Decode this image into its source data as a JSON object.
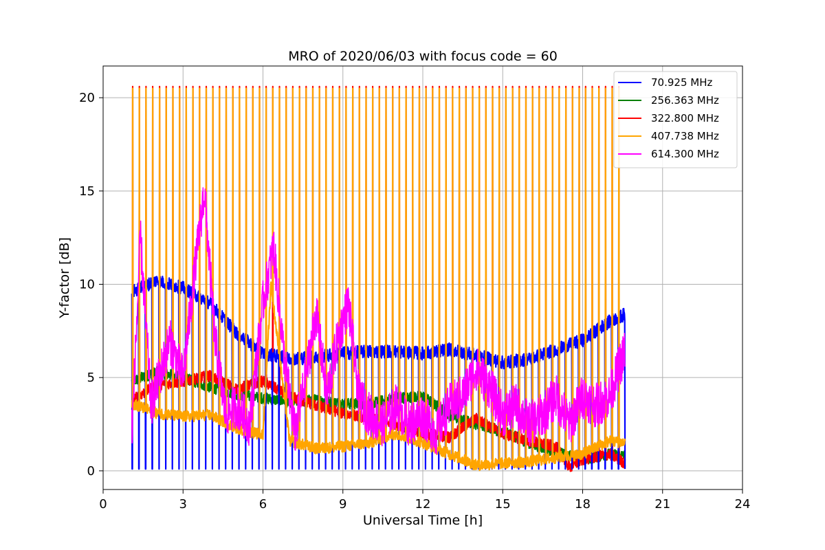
{
  "chart_data": {
    "type": "line",
    "title": "MRO of 2020/06/03 with focus code = 60",
    "xlabel": "Universal Time [h]",
    "ylabel": "Y-factor [dB]",
    "xlim": [
      0,
      24
    ],
    "ylim": [
      -1,
      21.7
    ],
    "xticks": [
      0,
      3,
      6,
      9,
      12,
      15,
      18,
      21,
      24
    ],
    "yticks": [
      0,
      5,
      10,
      15,
      20
    ],
    "grid": true,
    "legend_position": "top-right",
    "x_range_observed": [
      1.08,
      19.6
    ],
    "pulse_period_h": 0.25,
    "series": [
      {
        "name": "70.925 MHz",
        "color": "#0000ff",
        "baseline_x": [
          1.1,
          2.0,
          3.0,
          4.0,
          5.0,
          6.0,
          7.0,
          8.0,
          9.0,
          10.0,
          11.0,
          12.0,
          13.0,
          14.0,
          15.0,
          16.0,
          17.0,
          18.0,
          19.0,
          19.6
        ],
        "baseline_y": [
          9.6,
          10.2,
          9.8,
          9.0,
          7.4,
          6.3,
          6.0,
          6.1,
          6.3,
          6.4,
          6.4,
          6.3,
          6.5,
          6.2,
          5.8,
          6.0,
          6.5,
          7.0,
          8.0,
          8.4
        ],
        "dip_y": 0.1
      },
      {
        "name": "256.363 MHz",
        "color": "#008000",
        "baseline_x": [
          1.1,
          2.0,
          3.0,
          4.0,
          5.0,
          6.0,
          7.0,
          8.0,
          9.0,
          10.0,
          11.0,
          12.0,
          13.0,
          14.0,
          15.0,
          16.0,
          17.0,
          18.0,
          19.0,
          19.6
        ],
        "baseline_y": [
          4.8,
          5.3,
          5.0,
          4.5,
          4.1,
          3.9,
          3.7,
          3.8,
          3.6,
          3.6,
          3.9,
          4.0,
          3.0,
          2.5,
          2.1,
          1.5,
          1.0,
          0.6,
          0.9,
          0.8
        ]
      },
      {
        "name": "322.800 MHz",
        "color": "#ff0000",
        "baseline_x": [
          1.1,
          2.0,
          3.0,
          4.0,
          5.0,
          6.0,
          7.0,
          8.0,
          9.0,
          10.0,
          11.0,
          12.0,
          13.0,
          14.0,
          15.0,
          16.0,
          17.0,
          17.5,
          18.0,
          19.0,
          19.6
        ],
        "baseline_y": [
          3.8,
          4.6,
          4.8,
          5.1,
          4.4,
          4.8,
          4.0,
          3.5,
          3.1,
          2.8,
          2.5,
          2.0,
          1.8,
          2.8,
          2.0,
          1.6,
          1.3,
          0.2,
          0.6,
          0.9,
          0.4
        ],
        "peak_y": 20.6
      },
      {
        "name": "407.738 MHz",
        "color": "#ffa500",
        "baseline_x": [
          1.1,
          2.0,
          3.0,
          4.0,
          5.0,
          6.0,
          6.3,
          7.0,
          8.0,
          9.0,
          10.0,
          11.0,
          12.0,
          13.0,
          14.0,
          15.0,
          16.0,
          17.0,
          18.0,
          19.0,
          19.6
        ],
        "baseline_y": [
          3.6,
          3.1,
          2.9,
          3.0,
          2.3,
          1.9,
          10.0,
          1.6,
          1.2,
          1.3,
          1.5,
          2.0,
          1.5,
          0.9,
          0.3,
          0.4,
          0.5,
          0.7,
          0.9,
          1.6,
          1.5
        ],
        "peak_y": 20.5
      },
      {
        "name": "614.300 MHz",
        "color": "#ff00ff",
        "baseline_x": [
          1.1,
          1.4,
          1.8,
          2.5,
          3.0,
          3.5,
          3.8,
          4.2,
          4.6,
          5.0,
          5.5,
          6.0,
          6.4,
          6.8,
          7.2,
          7.6,
          8.0,
          8.4,
          8.8,
          9.2,
          9.6,
          10.0,
          10.5,
          11.0,
          11.5,
          12.0,
          12.5,
          13.0,
          13.5,
          14.0,
          14.5,
          15.0,
          15.5,
          16.0,
          16.5,
          17.0,
          17.5,
          18.0,
          18.5,
          19.0,
          19.6
        ],
        "baseline_y": [
          2.6,
          12.5,
          3.5,
          7.0,
          5.0,
          11.5,
          15.0,
          7.0,
          3.0,
          3.5,
          2.5,
          9.0,
          12.0,
          6.0,
          2.0,
          5.0,
          8.5,
          4.0,
          7.0,
          9.0,
          4.0,
          3.0,
          2.5,
          3.5,
          2.5,
          3.0,
          2.0,
          3.5,
          4.0,
          5.5,
          4.5,
          3.0,
          3.5,
          2.5,
          3.0,
          4.0,
          2.5,
          4.0,
          3.5,
          4.0,
          6.5
        ],
        "pulse_y": 10.2
      }
    ]
  }
}
